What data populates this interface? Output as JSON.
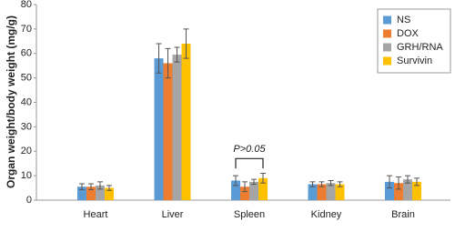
{
  "chart_data": {
    "type": "bar",
    "y_label": "Organ weight/body weight (mg/g)",
    "categories": [
      "Heart",
      "Liver",
      "Spleen",
      "Kidney",
      "Brain"
    ],
    "series": [
      {
        "name": "NS",
        "color": "#5b9bd5",
        "values": [
          5.5,
          58,
          8,
          6.5,
          7.5
        ],
        "errors": [
          1.2,
          6,
          2,
          1,
          2.5
        ]
      },
      {
        "name": "DOX",
        "color": "#ed7d31",
        "values": [
          5.5,
          56,
          5.5,
          6.5,
          7
        ],
        "errors": [
          1.2,
          6,
          2,
          1,
          2.5
        ]
      },
      {
        "name": "GRH/RNA",
        "color": "#a5a5a5",
        "values": [
          6,
          59.5,
          7.5,
          7,
          8.5
        ],
        "errors": [
          1.5,
          3,
          1,
          1,
          1.5
        ]
      },
      {
        "name": "Survivin",
        "color": "#ffc000",
        "values": [
          5,
          64,
          9,
          6.5,
          7.5
        ],
        "errors": [
          1,
          6,
          2,
          1,
          1.5
        ]
      }
    ],
    "annotation": "P>0.05",
    "ylim": [
      0,
      80
    ],
    "yticks": [
      0,
      10,
      20,
      30,
      40,
      50,
      60,
      70,
      80
    ],
    "grid": false,
    "legend": "upper right"
  }
}
